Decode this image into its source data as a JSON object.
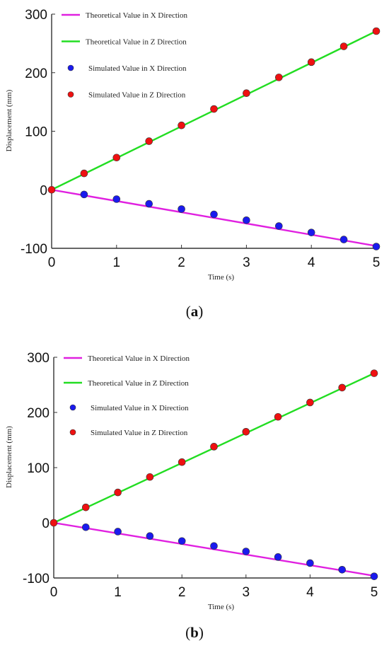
{
  "chart_data": [
    {
      "type": "line",
      "panel": "a",
      "xlabel": "Time (s)",
      "ylabel": "Displacement (mm)",
      "xlim": [
        0,
        5
      ],
      "ylim": [
        -100,
        300
      ],
      "xticks": [
        0,
        1,
        2,
        3,
        4,
        5
      ],
      "yticks": [
        -100,
        0,
        100,
        200,
        300
      ],
      "legend_position": "top-left",
      "series": [
        {
          "name": "Theoretical Value in X Direction",
          "kind": "line",
          "color": "#e020e0",
          "x": [
            0,
            5
          ],
          "y": [
            0,
            -96
          ]
        },
        {
          "name": "Theoretical Value in Z Direction",
          "kind": "line",
          "color": "#22dd22",
          "x": [
            0,
            5
          ],
          "y": [
            0,
            271
          ]
        },
        {
          "name": "Simulated Value in X Direction",
          "kind": "scatter",
          "color": "#1a1aee",
          "x": [
            0.5,
            1,
            1.5,
            2,
            2.5,
            3,
            3.5,
            4,
            4.5,
            5
          ],
          "y": [
            -8,
            -16,
            -24,
            -33,
            -42,
            -52,
            -62,
            -73,
            -85,
            -97
          ]
        },
        {
          "name": "Simulated Value in Z Direction",
          "kind": "scatter",
          "color": "#ee1111",
          "x": [
            0,
            0.5,
            1,
            1.5,
            2,
            2.5,
            3,
            3.5,
            4,
            4.5,
            5
          ],
          "y": [
            0,
            28,
            55,
            83,
            110,
            138,
            165,
            192,
            218,
            245,
            271
          ]
        }
      ]
    },
    {
      "type": "line",
      "panel": "b",
      "xlabel": "Time (s)",
      "ylabel": "Displacement (mm)",
      "xlim": [
        0,
        5
      ],
      "ylim": [
        -100,
        300
      ],
      "xticks": [
        0,
        1,
        2,
        3,
        4,
        5
      ],
      "yticks": [
        -100,
        0,
        100,
        200,
        300
      ],
      "legend_position": "top-left",
      "series": [
        {
          "name": "Theoretical Value in X Direction",
          "kind": "line",
          "color": "#e020e0",
          "x": [
            0,
            5
          ],
          "y": [
            0,
            -96
          ]
        },
        {
          "name": "Theoretical Value in Z Direction",
          "kind": "line",
          "color": "#22dd22",
          "x": [
            0,
            5
          ],
          "y": [
            0,
            271
          ]
        },
        {
          "name": "Simulated Value in X Direction",
          "kind": "scatter",
          "color": "#1a1aee",
          "x": [
            0.5,
            1,
            1.5,
            2,
            2.5,
            3,
            3.5,
            4,
            4.5,
            5
          ],
          "y": [
            -8,
            -16,
            -24,
            -33,
            -42,
            -52,
            -62,
            -73,
            -85,
            -97
          ]
        },
        {
          "name": "Simulated Value in Z Direction",
          "kind": "scatter",
          "color": "#ee1111",
          "x": [
            0,
            0.5,
            1,
            1.5,
            2,
            2.5,
            3,
            3.5,
            4,
            4.5,
            5
          ],
          "y": [
            0,
            28,
            55,
            83,
            110,
            138,
            165,
            192,
            218,
            245,
            271
          ]
        }
      ]
    }
  ],
  "captions": {
    "a": "a",
    "b": "b"
  }
}
